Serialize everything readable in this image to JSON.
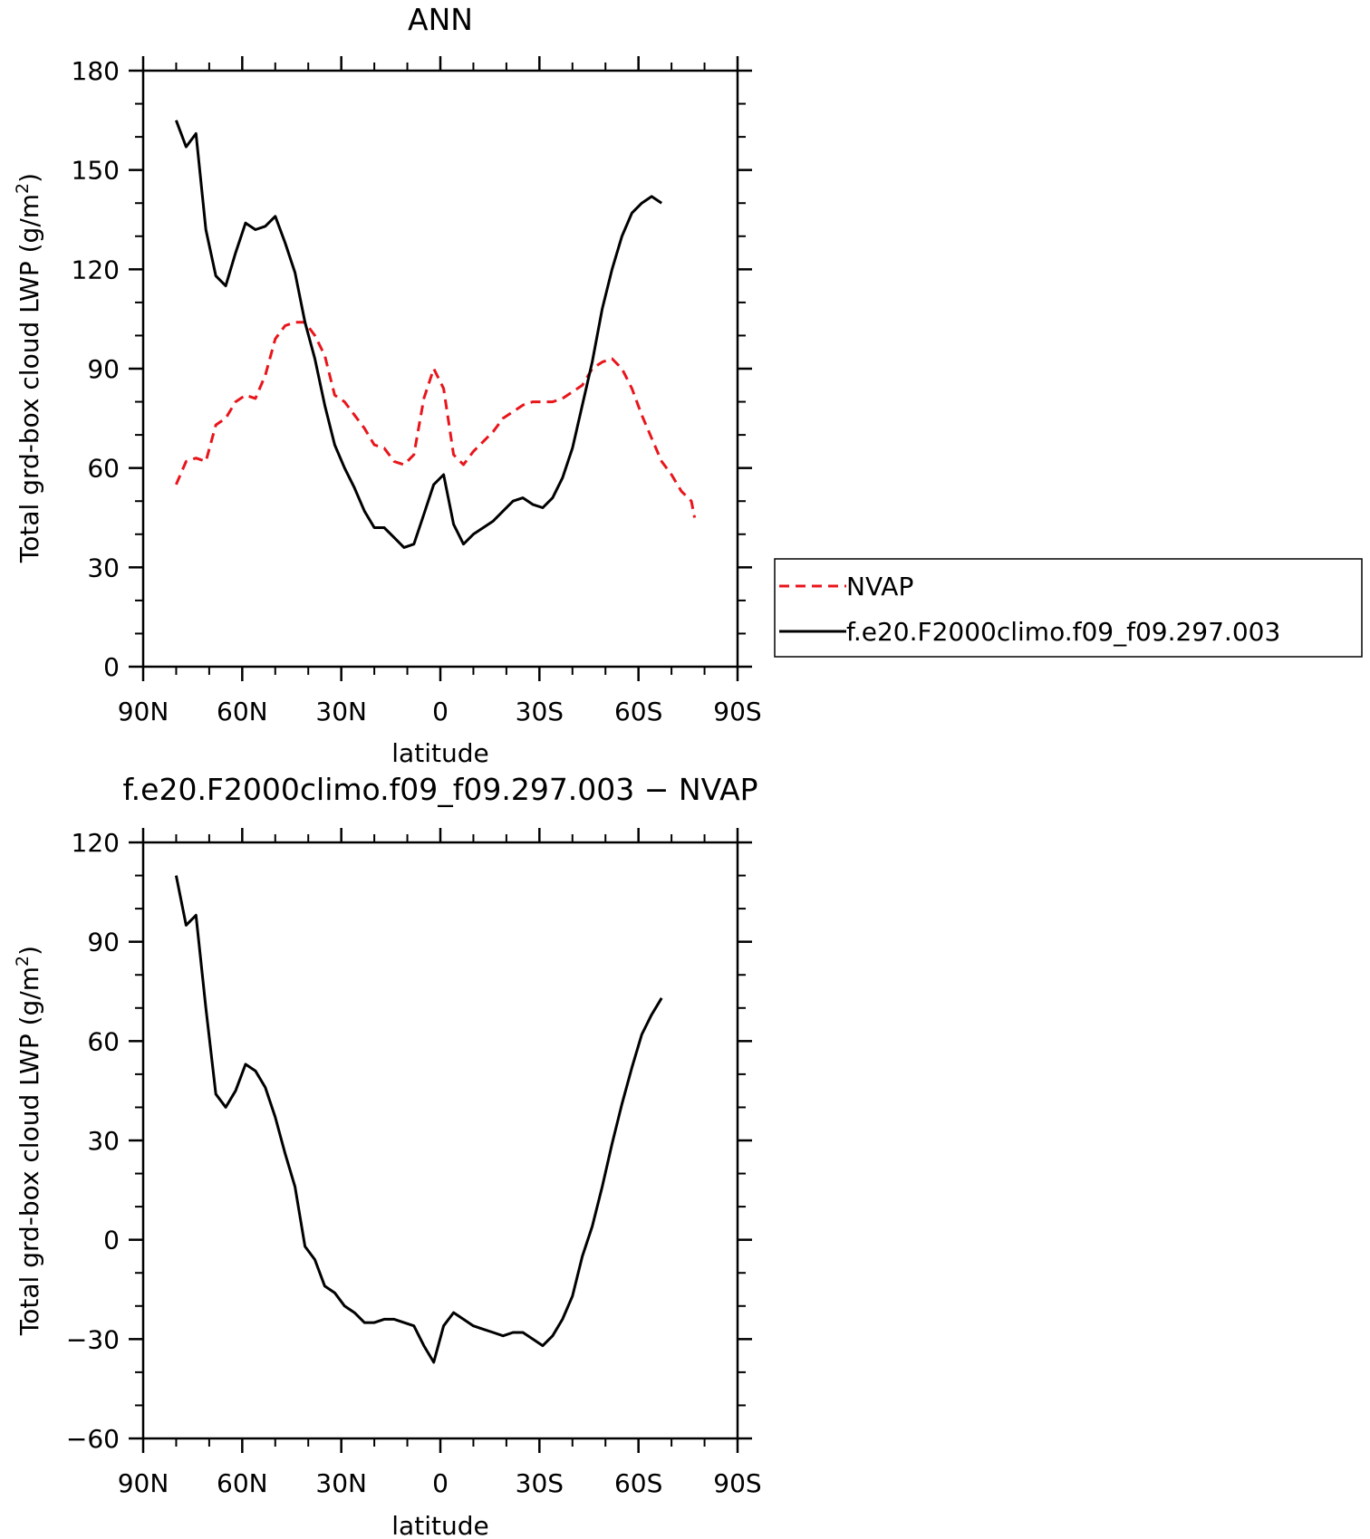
{
  "chart_data": [
    {
      "type": "line",
      "title": "ANN",
      "xlabel": "latitude",
      "ylabel": "Total grd-box cloud LWP (g/m",
      "ylabel_sup": "2",
      "ylabel_close": ")",
      "xlim": [
        90,
        -90
      ],
      "ylim": [
        0,
        180
      ],
      "yticks": [
        0,
        30,
        60,
        90,
        120,
        150,
        180
      ],
      "y_minor_step": 10,
      "xticks": [
        {
          "value": 90,
          "label": "90N"
        },
        {
          "value": 60,
          "label": "60N"
        },
        {
          "value": 30,
          "label": "30N"
        },
        {
          "value": 0,
          "label": "0"
        },
        {
          "value": -30,
          "label": "30S"
        },
        {
          "value": -60,
          "label": "60S"
        },
        {
          "value": -90,
          "label": "90S"
        }
      ],
      "x_minor_step": 10,
      "grid": false,
      "legend_position": "right",
      "series": [
        {
          "name": "NVAP",
          "color": "#e8151b",
          "dash": "dashed",
          "x": [
            80,
            77,
            74,
            71,
            68,
            65,
            62,
            59,
            56,
            53,
            50,
            47,
            44,
            41,
            38,
            35,
            32,
            29,
            26,
            23,
            20,
            17,
            14,
            11,
            8,
            5,
            2,
            -1,
            -4,
            -7,
            -10,
            -13,
            -16,
            -19,
            -22,
            -25,
            -28,
            -31,
            -34,
            -37,
            -40,
            -43,
            -46,
            -49,
            -52,
            -55,
            -58,
            -61,
            -64,
            -67,
            -70,
            -73,
            -76,
            -77
          ],
          "y": [
            55,
            62,
            63,
            62,
            73,
            75,
            80,
            82,
            81,
            88,
            99,
            103,
            104,
            104,
            100,
            94,
            82,
            80,
            76,
            72,
            67,
            66,
            62,
            61,
            64,
            81,
            90,
            84,
            64,
            61,
            65,
            68,
            71,
            75,
            77,
            79,
            80,
            80,
            80,
            81,
            83,
            85,
            90,
            92,
            93,
            90,
            84,
            76,
            69,
            62,
            58,
            53,
            50,
            45
          ]
        },
        {
          "name": "f.e20.F2000climo.f09_f09.297.003",
          "color": "#000000",
          "dash": "solid",
          "x": [
            80,
            77,
            74,
            71,
            68,
            65,
            62,
            59,
            56,
            53,
            50,
            47,
            44,
            41,
            38,
            35,
            32,
            29,
            26,
            23,
            20,
            17,
            14,
            11,
            8,
            5,
            2,
            -1,
            -4,
            -7,
            -10,
            -13,
            -16,
            -19,
            -22,
            -25,
            -28,
            -31,
            -34,
            -37,
            -40,
            -43,
            -46,
            -49,
            -52,
            -55,
            -58,
            -61,
            -64,
            -67
          ],
          "y": [
            165,
            157,
            161,
            132,
            118,
            115,
            125,
            134,
            132,
            133,
            136,
            128,
            119,
            104,
            93,
            79,
            67,
            60,
            54,
            47,
            42,
            42,
            39,
            36,
            37,
            46,
            55,
            58,
            43,
            37,
            40,
            42,
            44,
            47,
            50,
            51,
            49,
            48,
            51,
            57,
            66,
            79,
            92,
            108,
            120,
            130,
            137,
            140,
            142,
            140
          ]
        }
      ]
    },
    {
      "type": "line",
      "title": "f.e20.F2000climo.f09_f09.297.003 − NVAP",
      "xlabel": "latitude",
      "ylabel": "Total grd-box cloud LWP (g/m",
      "ylabel_sup": "2",
      "ylabel_close": ")",
      "xlim": [
        90,
        -90
      ],
      "ylim": [
        -60,
        120
      ],
      "yticks": [
        -60,
        -30,
        0,
        30,
        60,
        90,
        120
      ],
      "y_minor_step": 10,
      "xticks": [
        {
          "value": 90,
          "label": "90N"
        },
        {
          "value": 60,
          "label": "60N"
        },
        {
          "value": 30,
          "label": "30N"
        },
        {
          "value": 0,
          "label": "0"
        },
        {
          "value": -30,
          "label": "30S"
        },
        {
          "value": -60,
          "label": "60S"
        },
        {
          "value": -90,
          "label": "90S"
        }
      ],
      "x_minor_step": 10,
      "grid": false,
      "series": [
        {
          "color": "#000000",
          "dash": "solid",
          "x": [
            80,
            77,
            74,
            71,
            68,
            65,
            62,
            59,
            56,
            53,
            50,
            47,
            44,
            41,
            38,
            35,
            32,
            29,
            26,
            23,
            20,
            17,
            14,
            11,
            8,
            5,
            2,
            -1,
            -4,
            -7,
            -10,
            -13,
            -16,
            -19,
            -22,
            -25,
            -28,
            -31,
            -34,
            -37,
            -40,
            -43,
            -46,
            -49,
            -52,
            -55,
            -58,
            -61,
            -64,
            -67
          ],
          "y": [
            110,
            95,
            98,
            70,
            44,
            40,
            45,
            53,
            51,
            46,
            37,
            26,
            16,
            -2,
            -6,
            -14,
            -16,
            -20,
            -22,
            -25,
            -25,
            -24,
            -24,
            -25,
            -26,
            -32,
            -37,
            -26,
            -22,
            -24,
            -26,
            -27,
            -28,
            -29,
            -28,
            -28,
            -30,
            -32,
            -29,
            -24,
            -17,
            -5,
            4,
            16,
            29,
            41,
            52,
            62,
            68,
            73
          ]
        }
      ]
    }
  ]
}
